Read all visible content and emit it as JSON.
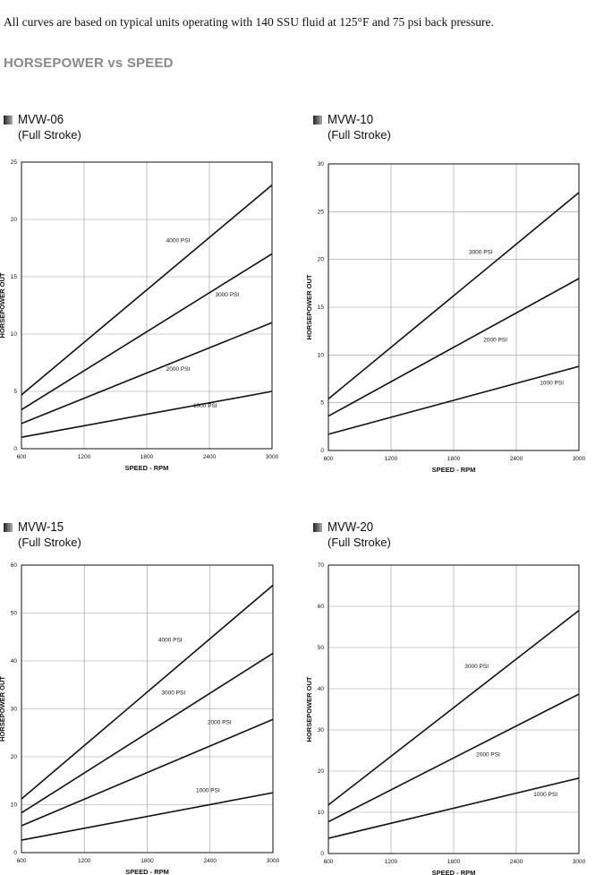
{
  "header": {
    "note": "All curves are based on typical units operating with 140 SSU fluid at 125°F and 75 psi back pressure.",
    "section_title": "HORSEPOWER vs SPEED"
  },
  "chart_data": [
    {
      "type": "line",
      "title": "MVW-06",
      "subtitle": "(Full Stroke)",
      "xlabel": "SPEED - RPM",
      "ylabel": "HORSEPOWER OUT",
      "xlim": [
        600,
        3000
      ],
      "ylim": [
        0,
        25
      ],
      "xticks": [
        600,
        1200,
        1800,
        2400,
        3000
      ],
      "yticks": [
        0,
        5,
        10,
        15,
        20,
        25
      ],
      "grid": true,
      "series": [
        {
          "name": "4000 PSI",
          "x": [
            600,
            3000
          ],
          "y": [
            4.7,
            23.0
          ],
          "label_at": [
            2100,
            18.0
          ]
        },
        {
          "name": "3000 PSI",
          "x": [
            600,
            3000
          ],
          "y": [
            3.4,
            17.0
          ],
          "label_at": [
            2570,
            13.3
          ]
        },
        {
          "name": "2000 PSI",
          "x": [
            600,
            3000
          ],
          "y": [
            2.2,
            11.0
          ],
          "label_at": [
            2100,
            6.8
          ]
        },
        {
          "name": "1000 PSI",
          "x": [
            600,
            3000
          ],
          "y": [
            1.0,
            5.0
          ],
          "label_at": [
            2360,
            3.6
          ]
        }
      ]
    },
    {
      "type": "line",
      "title": "MVW-10",
      "subtitle": "(Full Stroke)",
      "xlabel": "SPEED - RPM",
      "ylabel": "HORSEPOWER OUT",
      "xlim": [
        600,
        3000
      ],
      "ylim": [
        0,
        30
      ],
      "xticks": [
        600,
        1200,
        1800,
        2400,
        3000
      ],
      "yticks": [
        0,
        5,
        10,
        15,
        20,
        25,
        30
      ],
      "grid": true,
      "series": [
        {
          "name": "3000 PSI",
          "x": [
            600,
            3000
          ],
          "y": [
            5.4,
            27.0
          ],
          "label_at": [
            2060,
            20.6
          ]
        },
        {
          "name": "2000 PSI",
          "x": [
            600,
            3000
          ],
          "y": [
            3.6,
            18.0
          ],
          "label_at": [
            2200,
            11.4
          ]
        },
        {
          "name": "1000 PSI",
          "x": [
            600,
            3000
          ],
          "y": [
            1.7,
            8.8
          ],
          "label_at": [
            2740,
            6.9
          ]
        }
      ]
    },
    {
      "type": "line",
      "title": "MVW-15",
      "subtitle": "(Full Stroke)",
      "xlabel": "SPEED - RPM",
      "ylabel": "HORSEPOWER OUT",
      "xlim": [
        600,
        3000
      ],
      "ylim": [
        0,
        60
      ],
      "xticks": [
        600,
        1200,
        1800,
        2400,
        3000
      ],
      "yticks": [
        0,
        10,
        20,
        30,
        40,
        50,
        60
      ],
      "grid": true,
      "series": [
        {
          "name": "4000 PSI",
          "x": [
            600,
            3000
          ],
          "y": [
            11.2,
            55.8
          ],
          "label_at": [
            2020,
            44.0
          ]
        },
        {
          "name": "3000 PSI",
          "x": [
            600,
            3000
          ],
          "y": [
            8.3,
            41.6
          ],
          "label_at": [
            2050,
            33.0
          ]
        },
        {
          "name": "2000 PSI",
          "x": [
            600,
            3000
          ],
          "y": [
            5.6,
            27.8
          ],
          "label_at": [
            2490,
            26.8
          ]
        },
        {
          "name": "1000 PSI",
          "x": [
            600,
            3000
          ],
          "y": [
            2.6,
            12.5
          ],
          "label_at": [
            2380,
            12.6
          ]
        }
      ]
    },
    {
      "type": "line",
      "title": "MVW-20",
      "subtitle": "(Full Stroke)",
      "xlabel": "SPEED - RPM",
      "ylabel": "HORSEPOWER OUT",
      "xlim": [
        600,
        3000
      ],
      "ylim": [
        0,
        70
      ],
      "xticks": [
        600,
        1200,
        1800,
        2400,
        3000
      ],
      "yticks": [
        0,
        10,
        20,
        30,
        40,
        50,
        60,
        70
      ],
      "grid": true,
      "series": [
        {
          "name": "3000 PSI",
          "x": [
            600,
            3000
          ],
          "y": [
            11.8,
            59.0
          ],
          "label_at": [
            2020,
            45.0
          ]
        },
        {
          "name": "2000 PSI",
          "x": [
            600,
            3000
          ],
          "y": [
            7.7,
            38.7
          ],
          "label_at": [
            2130,
            23.6
          ]
        },
        {
          "name": "1000 PSI",
          "x": [
            600,
            3000
          ],
          "y": [
            3.7,
            18.3
          ],
          "label_at": [
            2680,
            13.9
          ]
        }
      ]
    }
  ]
}
